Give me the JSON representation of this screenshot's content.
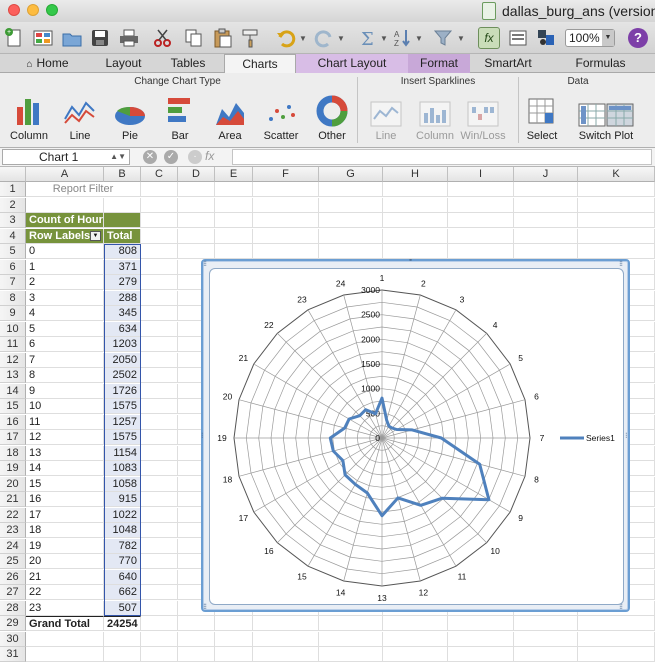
{
  "window": {
    "title": "dallas_burg_ans (version"
  },
  "toolbar": {
    "zoom": "100%",
    "fx": "fx",
    "help": "?"
  },
  "tabs": [
    {
      "label": "Home",
      "x": 0,
      "w": 95
    },
    {
      "label": "Layout",
      "x": 95,
      "w": 57
    },
    {
      "label": "Tables",
      "x": 152,
      "w": 72
    },
    {
      "label": "Charts",
      "x": 224,
      "w": 72,
      "active": true
    },
    {
      "label": "Chart Layout",
      "x": 296,
      "w": 112,
      "purple": true,
      "first": true
    },
    {
      "label": "Format",
      "x": 408,
      "w": 62,
      "purple": true
    },
    {
      "label": "SmartArt",
      "x": 470,
      "w": 76
    },
    {
      "label": "Formulas",
      "x": 546,
      "w": 109
    }
  ],
  "ribbon": {
    "groups": {
      "change_chart_type": "Change Chart Type",
      "insert_sparklines": "Insert Sparklines",
      "data": "Data"
    },
    "buttons": {
      "column": "Column",
      "line": "Line",
      "pie": "Pie",
      "bar": "Bar",
      "area": "Area",
      "scatter": "Scatter",
      "other": "Other",
      "spark_line": "Line",
      "spark_column": "Column",
      "spark_winloss": "Win/Loss",
      "select": "Select",
      "switch_plot": "Switch Plot"
    }
  },
  "formula_bar": {
    "name_box": "Chart 1",
    "fx": "fx",
    "value": ""
  },
  "columns": [
    "A",
    "B",
    "C",
    "D",
    "E",
    "F",
    "G",
    "H",
    "I",
    "J",
    "K"
  ],
  "rows": [
    "1",
    "2",
    "3",
    "4",
    "5",
    "6",
    "7",
    "8",
    "9",
    "10",
    "11",
    "12",
    "13",
    "14",
    "15",
    "16",
    "17",
    "18",
    "19",
    "20",
    "21",
    "22",
    "23",
    "24",
    "25",
    "26",
    "27",
    "28",
    "29",
    "30",
    "31"
  ],
  "pivot": {
    "report_filter": "Report Filter",
    "count_header": "Count of Hour",
    "row_labels": "Row Labels",
    "total_header": "Total",
    "labels": [
      "0",
      "1",
      "2",
      "3",
      "4",
      "5",
      "6",
      "7",
      "8",
      "9",
      "10",
      "11",
      "12",
      "13",
      "14",
      "15",
      "16",
      "17",
      "18",
      "19",
      "20",
      "21",
      "22",
      "23"
    ],
    "values": [
      808,
      371,
      279,
      288,
      345,
      634,
      1203,
      2050,
      2502,
      1726,
      1575,
      1257,
      1575,
      1154,
      1083,
      1058,
      915,
      1022,
      1048,
      782,
      770,
      640,
      662,
      507
    ],
    "grand_label": "Grand Total",
    "grand_value": "24254"
  },
  "chart_data": {
    "type": "radar",
    "categories": [
      "1",
      "2",
      "3",
      "4",
      "5",
      "6",
      "7",
      "8",
      "9",
      "10",
      "11",
      "12",
      "13",
      "14",
      "15",
      "16",
      "17",
      "18",
      "19",
      "20",
      "21",
      "22",
      "23",
      "24"
    ],
    "series": [
      {
        "name": "Series1",
        "values": [
          808,
          371,
          279,
          288,
          345,
          634,
          1203,
          2050,
          2502,
          1726,
          1575,
          1257,
          1575,
          1154,
          1083,
          1058,
          915,
          1022,
          1048,
          782,
          770,
          640,
          662,
          507
        ],
        "color": "#4f81bd"
      }
    ],
    "radial_ticks": [
      0,
      500,
      1000,
      1500,
      2000,
      2500,
      3000
    ],
    "radial_tick_labels": [
      "0",
      "500",
      "1000",
      "1500",
      "2000",
      "2500",
      "3000"
    ],
    "rmax": 3000,
    "legend_position": "right"
  }
}
